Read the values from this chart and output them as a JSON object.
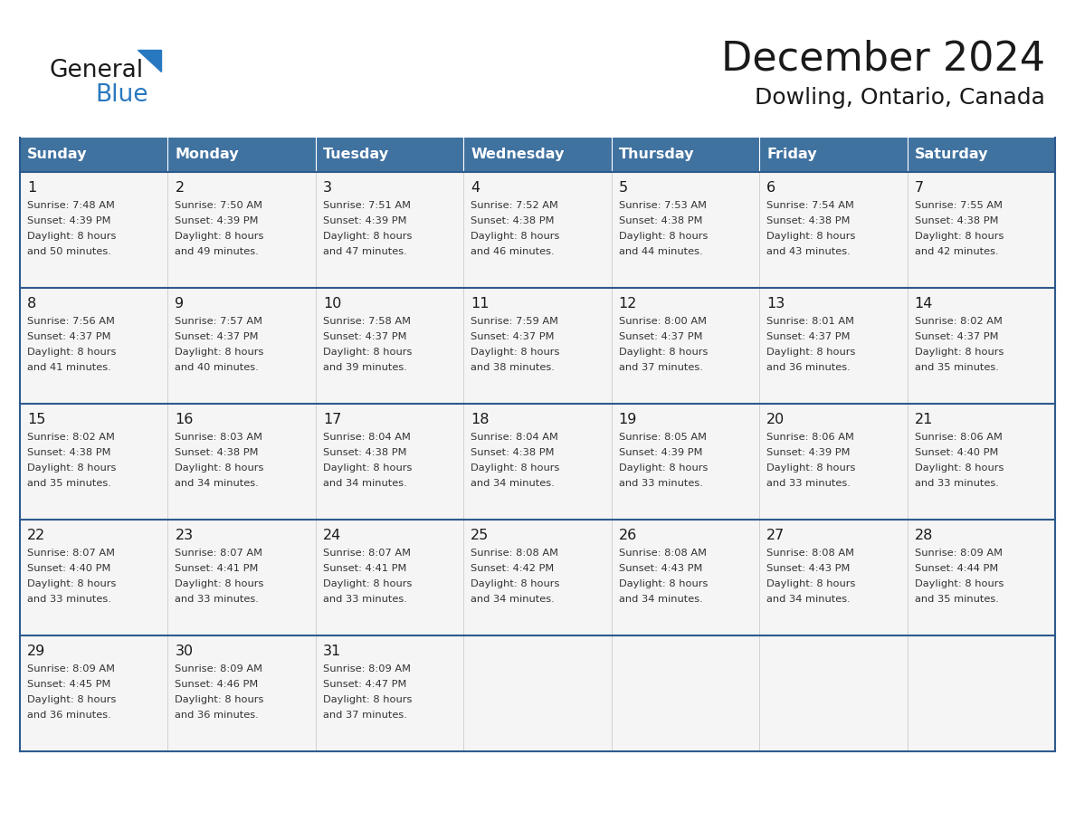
{
  "title": "December 2024",
  "subtitle": "Dowling, Ontario, Canada",
  "logo_text1": "General",
  "logo_text2": "Blue",
  "header_color": "#4072a0",
  "header_text_color": "#ffffff",
  "cell_bg_color": "#f5f5f5",
  "row_border_color": "#2d5a8e",
  "col_border_color": "#cccccc",
  "day_headers": [
    "Sunday",
    "Monday",
    "Tuesday",
    "Wednesday",
    "Thursday",
    "Friday",
    "Saturday"
  ],
  "calendar": [
    [
      {
        "day": 1,
        "sunrise": "7:48 AM",
        "sunset": "4:39 PM",
        "daylight_hrs": 8,
        "daylight_min": 50
      },
      {
        "day": 2,
        "sunrise": "7:50 AM",
        "sunset": "4:39 PM",
        "daylight_hrs": 8,
        "daylight_min": 49
      },
      {
        "day": 3,
        "sunrise": "7:51 AM",
        "sunset": "4:39 PM",
        "daylight_hrs": 8,
        "daylight_min": 47
      },
      {
        "day": 4,
        "sunrise": "7:52 AM",
        "sunset": "4:38 PM",
        "daylight_hrs": 8,
        "daylight_min": 46
      },
      {
        "day": 5,
        "sunrise": "7:53 AM",
        "sunset": "4:38 PM",
        "daylight_hrs": 8,
        "daylight_min": 44
      },
      {
        "day": 6,
        "sunrise": "7:54 AM",
        "sunset": "4:38 PM",
        "daylight_hrs": 8,
        "daylight_min": 43
      },
      {
        "day": 7,
        "sunrise": "7:55 AM",
        "sunset": "4:38 PM",
        "daylight_hrs": 8,
        "daylight_min": 42
      }
    ],
    [
      {
        "day": 8,
        "sunrise": "7:56 AM",
        "sunset": "4:37 PM",
        "daylight_hrs": 8,
        "daylight_min": 41
      },
      {
        "day": 9,
        "sunrise": "7:57 AM",
        "sunset": "4:37 PM",
        "daylight_hrs": 8,
        "daylight_min": 40
      },
      {
        "day": 10,
        "sunrise": "7:58 AM",
        "sunset": "4:37 PM",
        "daylight_hrs": 8,
        "daylight_min": 39
      },
      {
        "day": 11,
        "sunrise": "7:59 AM",
        "sunset": "4:37 PM",
        "daylight_hrs": 8,
        "daylight_min": 38
      },
      {
        "day": 12,
        "sunrise": "8:00 AM",
        "sunset": "4:37 PM",
        "daylight_hrs": 8,
        "daylight_min": 37
      },
      {
        "day": 13,
        "sunrise": "8:01 AM",
        "sunset": "4:37 PM",
        "daylight_hrs": 8,
        "daylight_min": 36
      },
      {
        "day": 14,
        "sunrise": "8:02 AM",
        "sunset": "4:37 PM",
        "daylight_hrs": 8,
        "daylight_min": 35
      }
    ],
    [
      {
        "day": 15,
        "sunrise": "8:02 AM",
        "sunset": "4:38 PM",
        "daylight_hrs": 8,
        "daylight_min": 35
      },
      {
        "day": 16,
        "sunrise": "8:03 AM",
        "sunset": "4:38 PM",
        "daylight_hrs": 8,
        "daylight_min": 34
      },
      {
        "day": 17,
        "sunrise": "8:04 AM",
        "sunset": "4:38 PM",
        "daylight_hrs": 8,
        "daylight_min": 34
      },
      {
        "day": 18,
        "sunrise": "8:04 AM",
        "sunset": "4:38 PM",
        "daylight_hrs": 8,
        "daylight_min": 34
      },
      {
        "day": 19,
        "sunrise": "8:05 AM",
        "sunset": "4:39 PM",
        "daylight_hrs": 8,
        "daylight_min": 33
      },
      {
        "day": 20,
        "sunrise": "8:06 AM",
        "sunset": "4:39 PM",
        "daylight_hrs": 8,
        "daylight_min": 33
      },
      {
        "day": 21,
        "sunrise": "8:06 AM",
        "sunset": "4:40 PM",
        "daylight_hrs": 8,
        "daylight_min": 33
      }
    ],
    [
      {
        "day": 22,
        "sunrise": "8:07 AM",
        "sunset": "4:40 PM",
        "daylight_hrs": 8,
        "daylight_min": 33
      },
      {
        "day": 23,
        "sunrise": "8:07 AM",
        "sunset": "4:41 PM",
        "daylight_hrs": 8,
        "daylight_min": 33
      },
      {
        "day": 24,
        "sunrise": "8:07 AM",
        "sunset": "4:41 PM",
        "daylight_hrs": 8,
        "daylight_min": 33
      },
      {
        "day": 25,
        "sunrise": "8:08 AM",
        "sunset": "4:42 PM",
        "daylight_hrs": 8,
        "daylight_min": 34
      },
      {
        "day": 26,
        "sunrise": "8:08 AM",
        "sunset": "4:43 PM",
        "daylight_hrs": 8,
        "daylight_min": 34
      },
      {
        "day": 27,
        "sunrise": "8:08 AM",
        "sunset": "4:43 PM",
        "daylight_hrs": 8,
        "daylight_min": 34
      },
      {
        "day": 28,
        "sunrise": "8:09 AM",
        "sunset": "4:44 PM",
        "daylight_hrs": 8,
        "daylight_min": 35
      }
    ],
    [
      {
        "day": 29,
        "sunrise": "8:09 AM",
        "sunset": "4:45 PM",
        "daylight_hrs": 8,
        "daylight_min": 36
      },
      {
        "day": 30,
        "sunrise": "8:09 AM",
        "sunset": "4:46 PM",
        "daylight_hrs": 8,
        "daylight_min": 36
      },
      {
        "day": 31,
        "sunrise": "8:09 AM",
        "sunset": "4:47 PM",
        "daylight_hrs": 8,
        "daylight_min": 37
      },
      null,
      null,
      null,
      null
    ]
  ],
  "figsize": [
    11.88,
    9.18
  ],
  "dpi": 100
}
